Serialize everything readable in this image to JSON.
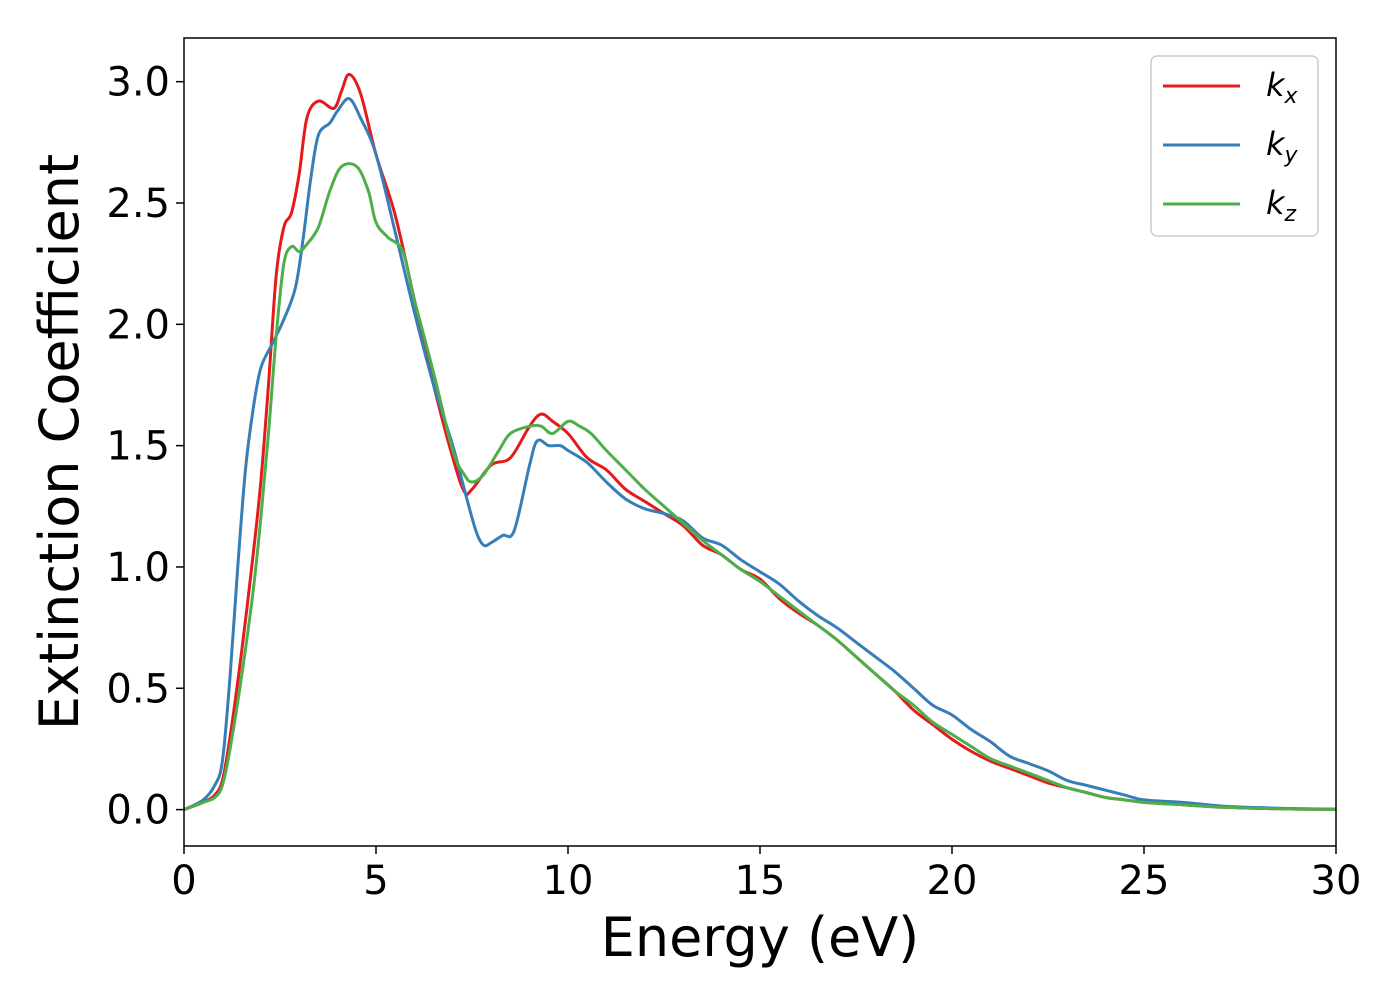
{
  "chart_data": {
    "type": "line",
    "xlabel": "Energy (eV)",
    "ylabel": "Extinction Coefficient",
    "xlim": [
      0,
      30
    ],
    "ylim": [
      -0.15,
      3.18
    ],
    "xticks": [
      0,
      5,
      10,
      15,
      20,
      25,
      30
    ],
    "yticks": [
      0.0,
      0.5,
      1.0,
      1.5,
      2.0,
      2.5,
      3.0
    ],
    "xtick_labels": [
      "0",
      "5",
      "10",
      "15",
      "20",
      "25",
      "30"
    ],
    "ytick_labels": [
      "0.0",
      "0.5",
      "1.0",
      "1.5",
      "2.0",
      "2.5",
      "3.0"
    ],
    "grid": false,
    "legend_position": "top-right",
    "series": [
      {
        "name": "k_x",
        "label_base": "k",
        "label_sub": "x",
        "color": "#e41a1c",
        "x": [
          0,
          0.5,
          0.8,
          1.0,
          1.2,
          1.5,
          1.8,
          2.0,
          2.2,
          2.4,
          2.6,
          2.8,
          3.0,
          3.2,
          3.5,
          3.9,
          4.1,
          4.3,
          4.6,
          5.0,
          5.5,
          6.0,
          6.5,
          7.0,
          7.3,
          7.5,
          8.0,
          8.5,
          9.0,
          9.3,
          9.6,
          10.0,
          10.5,
          11.0,
          11.5,
          12.0,
          12.5,
          13.0,
          13.5,
          14.0,
          14.5,
          15.0,
          15.5,
          16.0,
          16.5,
          17.0,
          17.5,
          18.0,
          18.5,
          19.0,
          19.5,
          20.0,
          20.5,
          21.0,
          21.5,
          22.0,
          22.5,
          23.0,
          23.5,
          24.0,
          24.5,
          25.0,
          26.0,
          27.0,
          28.0,
          29.0,
          30.0
        ],
        "y": [
          0.0,
          0.03,
          0.06,
          0.12,
          0.3,
          0.65,
          1.05,
          1.35,
          1.75,
          2.2,
          2.4,
          2.46,
          2.62,
          2.85,
          2.92,
          2.89,
          2.96,
          3.03,
          2.95,
          2.7,
          2.45,
          2.1,
          1.75,
          1.45,
          1.31,
          1.32,
          1.42,
          1.45,
          1.58,
          1.63,
          1.6,
          1.55,
          1.45,
          1.4,
          1.32,
          1.27,
          1.22,
          1.17,
          1.09,
          1.05,
          0.99,
          0.95,
          0.87,
          0.81,
          0.76,
          0.7,
          0.63,
          0.56,
          0.49,
          0.41,
          0.35,
          0.29,
          0.24,
          0.2,
          0.17,
          0.14,
          0.11,
          0.09,
          0.07,
          0.05,
          0.04,
          0.03,
          0.02,
          0.01,
          0.005,
          0.002,
          0.001
        ]
      },
      {
        "name": "k_y",
        "label_base": "k",
        "label_sub": "y",
        "color": "#377eb8",
        "x": [
          0,
          0.5,
          0.8,
          1.0,
          1.2,
          1.4,
          1.6,
          1.8,
          2.0,
          2.3,
          2.6,
          2.9,
          3.1,
          3.3,
          3.5,
          3.8,
          4.0,
          4.3,
          4.6,
          5.0,
          5.5,
          6.0,
          6.5,
          7.0,
          7.3,
          7.6,
          7.8,
          8.0,
          8.3,
          8.6,
          9.0,
          9.2,
          9.5,
          9.8,
          10.0,
          10.5,
          11.0,
          11.5,
          12.0,
          12.5,
          13.0,
          13.5,
          14.0,
          14.5,
          15.0,
          15.5,
          16.0,
          16.5,
          17.0,
          17.5,
          18.0,
          18.5,
          19.0,
          19.5,
          20.0,
          20.5,
          21.0,
          21.5,
          22.0,
          22.5,
          23.0,
          23.5,
          24.0,
          24.5,
          25.0,
          26.0,
          27.0,
          28.0,
          29.0,
          30.0
        ],
        "y": [
          0.0,
          0.04,
          0.1,
          0.2,
          0.55,
          1.0,
          1.4,
          1.65,
          1.82,
          1.92,
          2.02,
          2.15,
          2.35,
          2.6,
          2.78,
          2.83,
          2.88,
          2.93,
          2.85,
          2.7,
          2.38,
          2.05,
          1.75,
          1.5,
          1.32,
          1.15,
          1.09,
          1.1,
          1.13,
          1.15,
          1.42,
          1.52,
          1.5,
          1.5,
          1.48,
          1.43,
          1.35,
          1.28,
          1.24,
          1.22,
          1.19,
          1.12,
          1.09,
          1.03,
          0.98,
          0.93,
          0.86,
          0.8,
          0.75,
          0.69,
          0.63,
          0.57,
          0.5,
          0.43,
          0.39,
          0.33,
          0.28,
          0.22,
          0.19,
          0.16,
          0.12,
          0.1,
          0.08,
          0.06,
          0.04,
          0.03,
          0.015,
          0.008,
          0.004,
          0.002
        ]
      },
      {
        "name": "k_z",
        "label_base": "k",
        "label_sub": "z",
        "color": "#4daf4a",
        "x": [
          0,
          0.5,
          0.8,
          1.0,
          1.2,
          1.5,
          1.8,
          2.0,
          2.2,
          2.4,
          2.6,
          2.8,
          3.0,
          3.2,
          3.5,
          3.8,
          4.1,
          4.5,
          4.8,
          5.0,
          5.3,
          5.7,
          6.0,
          6.5,
          7.0,
          7.3,
          7.5,
          7.8,
          8.2,
          8.5,
          9.0,
          9.3,
          9.6,
          10.0,
          10.3,
          10.6,
          11.0,
          11.5,
          12.0,
          12.5,
          13.0,
          13.5,
          14.0,
          14.5,
          15.0,
          15.5,
          16.0,
          16.5,
          17.0,
          17.5,
          18.0,
          18.5,
          19.0,
          19.5,
          20.0,
          20.5,
          21.0,
          21.5,
          22.0,
          22.5,
          23.0,
          23.5,
          24.0,
          24.5,
          25.0,
          26.0,
          27.0,
          28.0,
          29.0,
          30.0
        ],
        "y": [
          0.0,
          0.03,
          0.05,
          0.1,
          0.25,
          0.55,
          0.9,
          1.2,
          1.55,
          1.95,
          2.25,
          2.32,
          2.3,
          2.33,
          2.4,
          2.55,
          2.65,
          2.65,
          2.55,
          2.42,
          2.36,
          2.3,
          2.1,
          1.8,
          1.48,
          1.38,
          1.35,
          1.38,
          1.48,
          1.55,
          1.58,
          1.58,
          1.55,
          1.6,
          1.58,
          1.55,
          1.48,
          1.4,
          1.32,
          1.25,
          1.18,
          1.11,
          1.05,
          0.99,
          0.94,
          0.88,
          0.82,
          0.76,
          0.7,
          0.63,
          0.56,
          0.49,
          0.43,
          0.36,
          0.31,
          0.26,
          0.21,
          0.18,
          0.15,
          0.12,
          0.09,
          0.07,
          0.05,
          0.04,
          0.03,
          0.02,
          0.01,
          0.005,
          0.002,
          0.001
        ]
      }
    ]
  }
}
